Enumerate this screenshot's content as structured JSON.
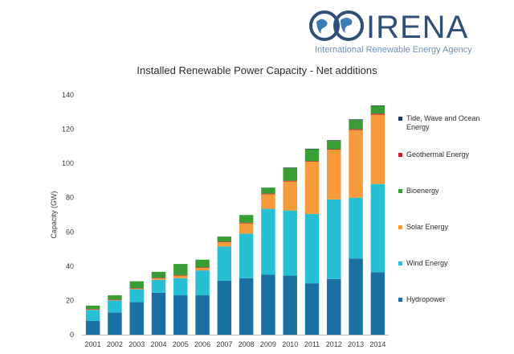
{
  "logo": {
    "name": "IRENA",
    "subtitle": "International Renewable Energy Agency"
  },
  "chart_data": {
    "type": "bar",
    "stacked": true,
    "title": "Installed Renewable Power Capacity - Net additions",
    "xlabel": "",
    "ylabel": "Capacity (GW)",
    "ylim": [
      0,
      140
    ],
    "yticks": [
      0,
      20,
      40,
      60,
      80,
      100,
      120,
      140
    ],
    "grid": false,
    "legend_position": "right",
    "categories": [
      "2001",
      "2002",
      "2003",
      "2004",
      "2005",
      "2006",
      "2007",
      "2008",
      "2009",
      "2010",
      "2011",
      "2012",
      "2013",
      "2014"
    ],
    "series": [
      {
        "name": "Hydropower",
        "color": "#1a6fa3",
        "values": [
          8,
          13,
          19,
          24.5,
          23,
          23,
          31.5,
          33,
          35,
          34.5,
          30,
          32.5,
          44.5,
          36.5
        ]
      },
      {
        "name": "Wind Energy",
        "color": "#27bfd3",
        "values": [
          6.5,
          7,
          7.5,
          7.5,
          10,
          14.5,
          20,
          26,
          38.5,
          38,
          40.5,
          46.5,
          35.5,
          51.5
        ]
      },
      {
        "name": "Solar Energy",
        "color": "#f79a3b",
        "values": [
          0.3,
          0.3,
          0.5,
          1,
          1.5,
          1.5,
          2.5,
          6,
          8.5,
          17,
          30.5,
          29,
          39.5,
          40.5
        ]
      },
      {
        "name": "Geothermal Energy",
        "color": "#c8202f",
        "values": [
          0.2,
          0.2,
          0.2,
          0.2,
          0.3,
          0.3,
          0.3,
          0.4,
          0.4,
          0.4,
          0.3,
          0.3,
          0.5,
          0.6
        ]
      },
      {
        "name": "Bioenergy",
        "color": "#3a9c35",
        "values": [
          2,
          2.5,
          4,
          3.5,
          6.5,
          4.5,
          3,
          4.5,
          3.5,
          7.5,
          7,
          5,
          5.5,
          4.5
        ]
      },
      {
        "name": "Tide, Wave and Ocean Energy",
        "color": "#1f3a5a",
        "values": [
          0,
          0,
          0,
          0,
          0,
          0,
          0,
          0,
          0,
          0.2,
          0.3,
          0.3,
          0.3,
          0.3
        ]
      }
    ],
    "legend_order": [
      "Tide, Wave and Ocean Energy",
      "Geothermal Energy",
      "Bioenergy",
      "Solar Energy",
      "Wind Energy",
      "Hydropower"
    ]
  }
}
